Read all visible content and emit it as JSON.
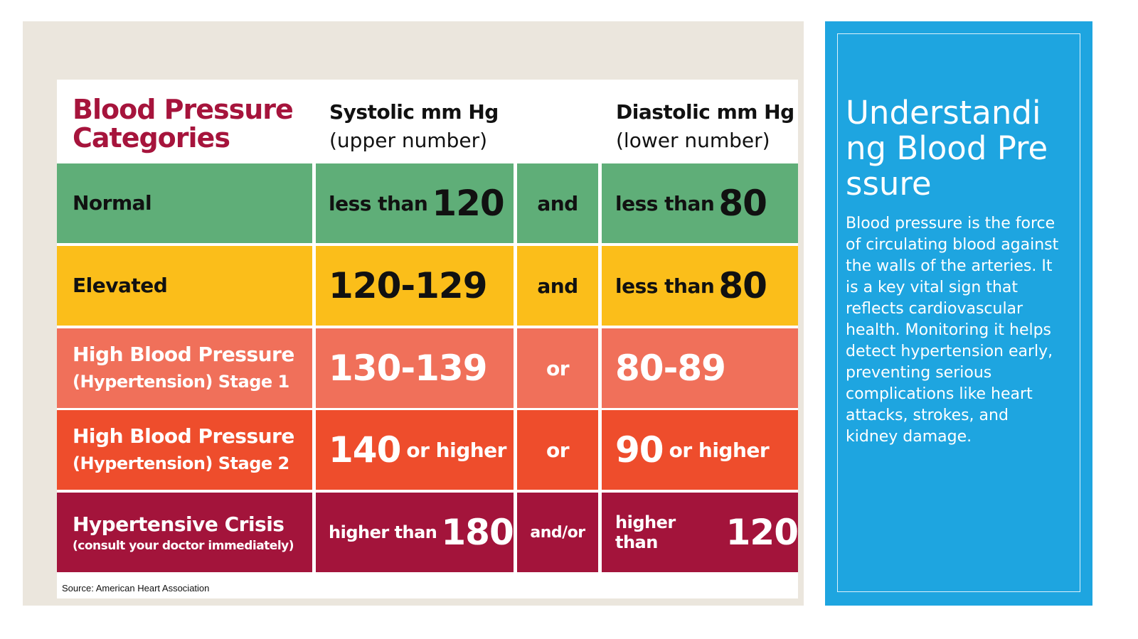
{
  "table": {
    "title_line1": "Blood Pressure",
    "title_line2": "Categories",
    "systolic_head": "Systolic mm Hg",
    "systolic_sub": "(upper number)",
    "diastolic_head": "Diastolic mm Hg",
    "diastolic_sub": "(lower number)",
    "rows": [
      {
        "category": "Normal",
        "category_sub": "",
        "sys_word": "less than",
        "sys_num": "120",
        "connector": "and",
        "dia_word": "less than",
        "dia_num": "80"
      },
      {
        "category": "Elevated",
        "category_sub": "",
        "sys_range": "120-129",
        "connector": "and",
        "dia_word": "less than",
        "dia_num": "80"
      },
      {
        "category": "High Blood Pressure",
        "category_sub": "(Hypertension) Stage 1",
        "sys_range": "130-139",
        "connector": "or",
        "dia_range": "80-89"
      },
      {
        "category": "High Blood Pressure",
        "category_sub": "(Hypertension) Stage 2",
        "sys_num": "140",
        "sys_word": "or higher",
        "connector": "or",
        "dia_num": "90",
        "dia_word": "or higher"
      },
      {
        "category": "Hypertensive Crisis",
        "category_sub": "(consult your doctor immediately)",
        "sys_word": "higher than",
        "sys_num": "180",
        "connector": "and/or",
        "dia_word": "higher than",
        "dia_num": "120"
      }
    ],
    "source": "Source: American Heart Association"
  },
  "sidebar": {
    "title": "Understanding Blood Pressure",
    "body": "Blood pressure is the force of circulating blood against the walls of the arteries. It is a key vital sign that reflects cardiovascular health. Monitoring it helps detect hypertension early, preventing serious complications like heart attacks, strokes, and kidney damage."
  },
  "colors": {
    "title_red": "#a6143c",
    "normal": "#5fae78",
    "elevated": "#fbbe1a",
    "stage1": "#f0705a",
    "stage2": "#ee4d2c",
    "crisis": "#a3143b",
    "panel_blue": "#1ea5e0"
  }
}
